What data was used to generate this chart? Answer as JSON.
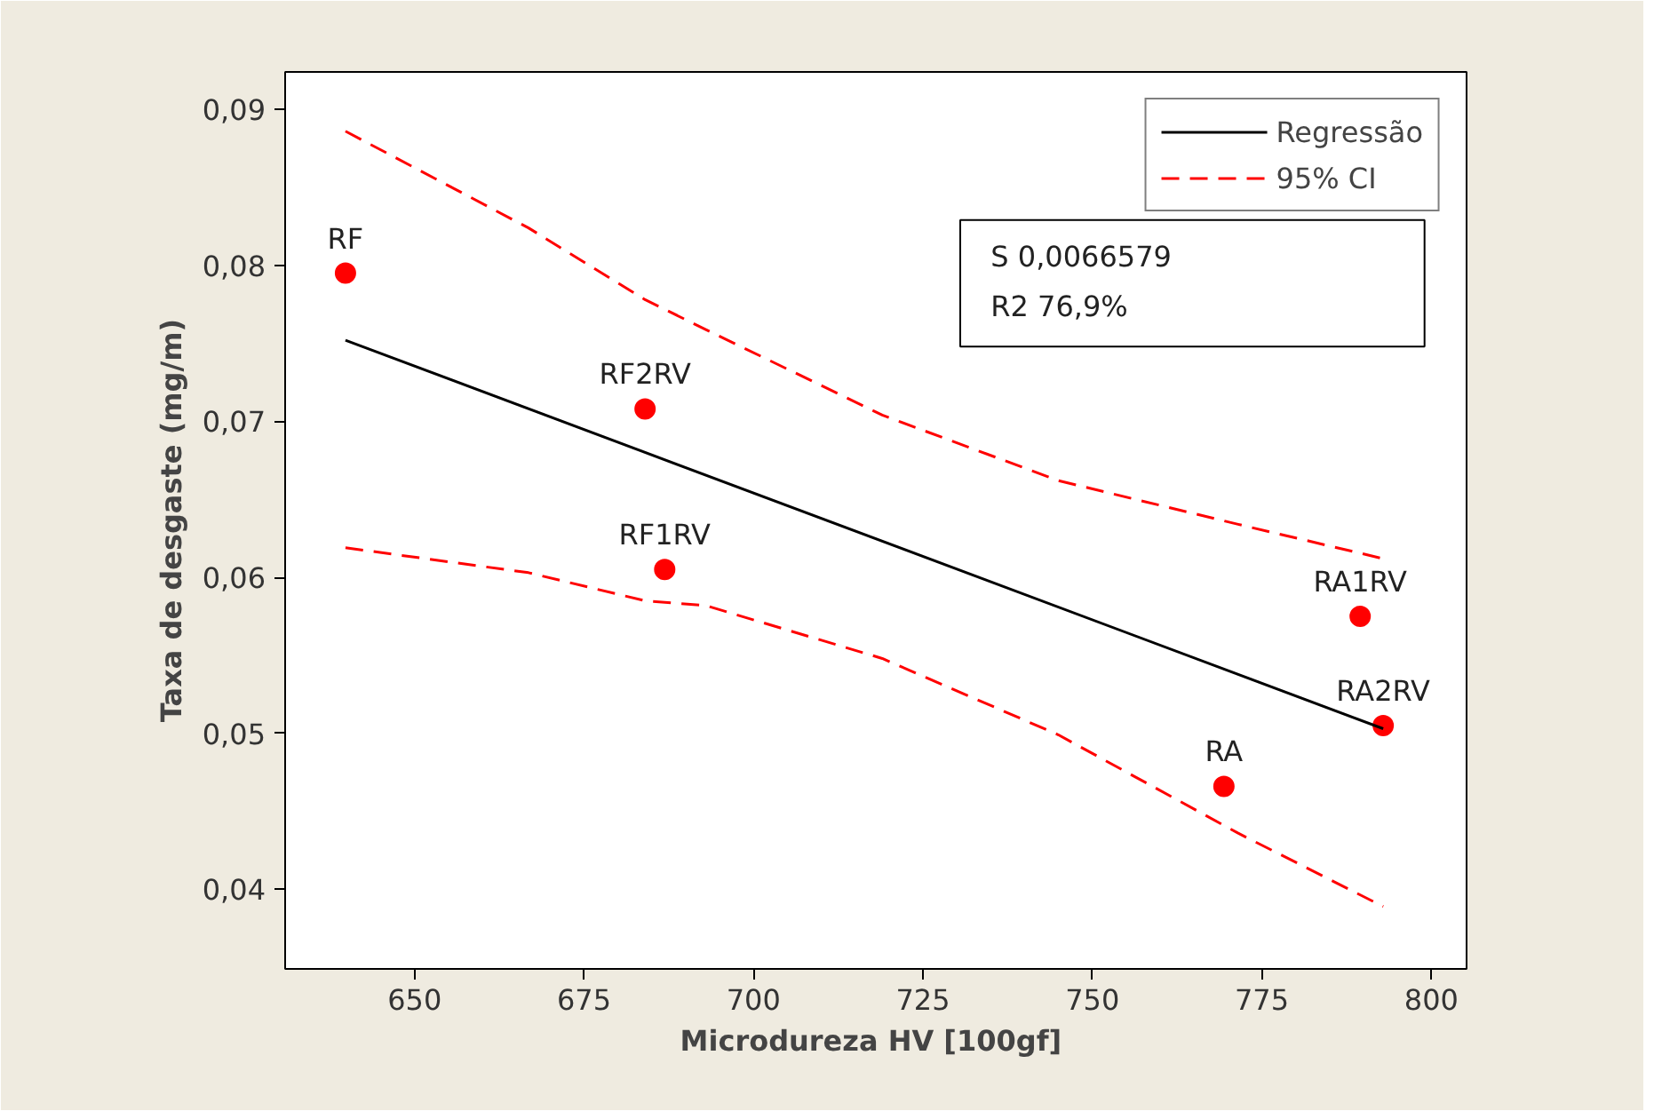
{
  "chart_data": {
    "type": "scatter",
    "xlabel": "Microdureza  HV [100gf]",
    "ylabel": "Taxa de desgaste (mg/m)",
    "xlim": [
      630.9,
      805.2
    ],
    "ylim": [
      0.0349,
      0.0924
    ],
    "xticks": [
      650,
      675,
      700,
      725,
      750,
      775,
      800
    ],
    "yticks": [
      {
        "value": 0.04,
        "label": "0,04"
      },
      {
        "value": 0.05,
        "label": "0,05"
      },
      {
        "value": 0.06,
        "label": "0,06"
      },
      {
        "value": 0.07,
        "label": "0,07"
      },
      {
        "value": 0.08,
        "label": "0,08"
      },
      {
        "value": 0.09,
        "label": "0,09"
      }
    ],
    "grid": false,
    "legend": "top right",
    "series": [
      {
        "color": "#ff0000",
        "marker": "circle",
        "x": [
          639.8,
          684.0,
          686.9,
          769.4,
          789.5,
          792.9
        ],
        "values": [
          0.0795,
          0.0708,
          0.0605,
          0.0466,
          0.0575,
          0.0505
        ]
      },
      {
        "type": "line",
        "name": "Regressão",
        "color": "#000000",
        "line_style": "solid",
        "x": [
          639.8,
          792.9
        ],
        "values": [
          0.0752,
          0.0503
        ]
      },
      {
        "type": "line",
        "name": "95% CI",
        "color": "#ff0000",
        "line_style": "dashed",
        "x": [
          639.8,
          666.8,
          684.0,
          692.9,
          719.0,
          745.0,
          771.5,
          792.9
        ],
        "values": [
          0.0886,
          0.0824,
          0.0778,
          0.0759,
          0.0704,
          0.0662,
          0.0634,
          0.0612
        ]
      },
      {
        "type": "line",
        "color": "#ff0000",
        "line_style": "dashed",
        "x": [
          639.8,
          666.8,
          684.0,
          692.9,
          719.0,
          745.0,
          771.5,
          792.9
        ],
        "values": [
          0.0619,
          0.0603,
          0.0585,
          0.0582,
          0.0548,
          0.0499,
          0.0436,
          0.0389
        ]
      }
    ],
    "annotations": [
      {
        "text": "RF",
        "x": 639.8,
        "y": 0.0795
      },
      {
        "text": "RF2RV",
        "x": 684.0,
        "y": 0.0708
      },
      {
        "text": "RF1RV",
        "x": 686.9,
        "y": 0.0605
      },
      {
        "text": "RA",
        "x": 769.4,
        "y": 0.0466
      },
      {
        "text": "RA1RV",
        "x": 789.5,
        "y": 0.0575
      },
      {
        "text": "RA2RV",
        "x": 792.9,
        "y": 0.0505
      },
      "S 0,0066579",
      "R2 76,9%"
    ]
  }
}
